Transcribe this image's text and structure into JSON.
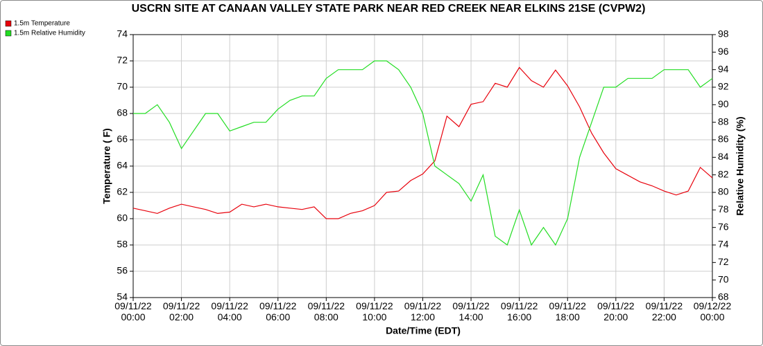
{
  "chart_data": {
    "type": "line",
    "title": "USCRN SITE AT CANAAN VALLEY STATE PARK NEAR RED CREEK NEAR ELKINS 21SE (CVPW2)",
    "x_label": "Date/Time (EDT)",
    "y_label": "Temperature ( F)",
    "y2_label": "Relative Humidity (%)",
    "x": [
      "09/11/22 00:00",
      "09/11/22 00:30",
      "09/11/22 01:00",
      "09/11/22 01:30",
      "09/11/22 02:00",
      "09/11/22 02:30",
      "09/11/22 03:00",
      "09/11/22 03:30",
      "09/11/22 04:00",
      "09/11/22 04:30",
      "09/11/22 05:00",
      "09/11/22 05:30",
      "09/11/22 06:00",
      "09/11/22 06:30",
      "09/11/22 07:00",
      "09/11/22 07:30",
      "09/11/22 08:00",
      "09/11/22 08:30",
      "09/11/22 09:00",
      "09/11/22 09:30",
      "09/11/22 10:00",
      "09/11/22 10:30",
      "09/11/22 11:00",
      "09/11/22 11:30",
      "09/11/22 12:00",
      "09/11/22 12:30",
      "09/11/22 13:00",
      "09/11/22 13:30",
      "09/11/22 14:00",
      "09/11/22 14:30",
      "09/11/22 15:00",
      "09/11/22 15:30",
      "09/11/22 16:00",
      "09/11/22 16:30",
      "09/11/22 17:00",
      "09/11/22 17:30",
      "09/11/22 18:00",
      "09/11/22 18:30",
      "09/11/22 19:00",
      "09/11/22 19:30",
      "09/11/22 20:00",
      "09/11/22 20:30",
      "09/11/22 21:00",
      "09/11/22 21:30",
      "09/11/22 22:00",
      "09/11/22 22:30",
      "09/11/22 23:00",
      "09/11/22 23:30",
      "09/12/22 00:00"
    ],
    "series": [
      {
        "name": "1.5m Temperature",
        "color": "#e8000b",
        "values": [
          60.8,
          60.6,
          60.4,
          60.8,
          61.1,
          60.9,
          60.7,
          60.4,
          60.5,
          61.1,
          60.9,
          61.1,
          60.9,
          60.8,
          60.7,
          60.9,
          60.0,
          60.0,
          60.4,
          60.6,
          61.0,
          62.0,
          62.1,
          62.9,
          63.4,
          64.4,
          67.8,
          67.0,
          68.7,
          68.9,
          70.3,
          70.0,
          71.5,
          70.5,
          70.0,
          71.3,
          70.1,
          68.5,
          66.5,
          65.0,
          63.8,
          63.3,
          62.8,
          62.5,
          62.1,
          61.8,
          62.1,
          63.9,
          63.1
        ]
      },
      {
        "name": "1.5m Relative Humidity",
        "color": "#22dd22",
        "axis": "y2",
        "values": [
          89,
          89,
          90,
          88,
          85,
          87,
          89,
          89,
          87,
          87.5,
          88,
          88,
          89.5,
          90.5,
          91,
          91,
          93,
          94,
          94,
          94,
          95,
          95,
          94,
          92,
          89,
          83,
          82,
          81,
          79,
          82,
          75,
          74,
          78,
          74,
          76,
          74,
          77,
          84,
          88,
          92,
          92,
          93,
          93,
          93,
          94,
          94,
          94,
          92,
          93
        ]
      }
    ],
    "xlim": [
      "09/11/22 00:00",
      "09/12/22 00:00"
    ],
    "xticks": [
      "09/11/22 00:00",
      "09/11/22 02:00",
      "09/11/22 04:00",
      "09/11/22 06:00",
      "09/11/22 08:00",
      "09/11/22 10:00",
      "09/11/22 12:00",
      "09/11/22 14:00",
      "09/11/22 16:00",
      "09/11/22 18:00",
      "09/11/22 20:00",
      "09/11/22 22:00",
      "09/12/22 00:00"
    ],
    "ylim": [
      54,
      74
    ],
    "yticks": [
      54,
      56,
      58,
      60,
      62,
      64,
      66,
      68,
      70,
      72,
      74
    ],
    "y2lim": [
      68,
      98
    ],
    "y2ticks": [
      68,
      70,
      72,
      74,
      76,
      78,
      80,
      82,
      84,
      86,
      88,
      90,
      92,
      94,
      96,
      98
    ],
    "grid": true,
    "legend": "top-left"
  }
}
